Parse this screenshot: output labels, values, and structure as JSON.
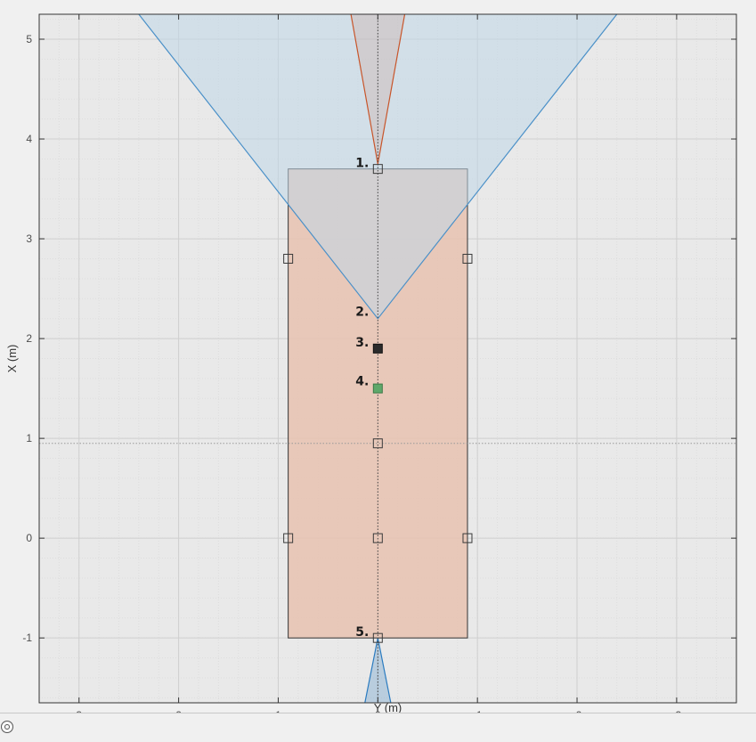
{
  "chart_data": {
    "type": "diagram",
    "x_axis": {
      "label": "Y (m)",
      "range": [
        3.4,
        -3.6
      ],
      "reversed": true,
      "ticks": [
        3,
        2,
        1,
        0,
        -1,
        -2,
        -3
      ]
    },
    "y_axis": {
      "label": "X (m)",
      "range": [
        -1.65,
        5.25
      ],
      "ticks": [
        -1,
        0,
        1,
        2,
        3,
        4,
        5
      ]
    },
    "grid": true,
    "minor_grid": true,
    "vehicle_body": {
      "y_left": 0.9,
      "y_right": -0.9,
      "x_front": 3.7,
      "x_rear": -1.0,
      "color": "#e8c2b0"
    },
    "front_wide_sensor": {
      "origin": [
        2.2,
        0.0
      ],
      "edge_points": [
        [
          5.25,
          2.4
        ],
        [
          5.25,
          -2.4
        ]
      ],
      "color": "#4a90c8",
      "fill": "#c0d7e8"
    },
    "front_narrow_sensor": {
      "origin": [
        3.75,
        0.0
      ],
      "edge_points": [
        [
          5.25,
          0.27
        ],
        [
          5.25,
          -0.27
        ]
      ],
      "color": "#c8552a"
    },
    "rear_sensor": {
      "origin": [
        -1.0,
        0.0
      ],
      "edge_points": [
        [
          -1.65,
          0.13
        ],
        [
          -1.65,
          -0.13
        ]
      ],
      "color": "#2a7bc0"
    },
    "reference_line_x": 0.95,
    "markers": [
      {
        "x": 3.7,
        "y": 0.0,
        "style": "open"
      },
      {
        "x": 2.8,
        "y": 0.9,
        "style": "open"
      },
      {
        "x": 2.8,
        "y": -0.9,
        "style": "open"
      },
      {
        "x": 1.9,
        "y": 0.0,
        "style": "filled-dark"
      },
      {
        "x": 1.5,
        "y": 0.0,
        "style": "filled-green"
      },
      {
        "x": 0.95,
        "y": 0.0,
        "style": "open"
      },
      {
        "x": 0.0,
        "y": 0.9,
        "style": "open"
      },
      {
        "x": 0.0,
        "y": 0.0,
        "style": "open"
      },
      {
        "x": 0.0,
        "y": -0.9,
        "style": "open"
      },
      {
        "x": -1.0,
        "y": 0.0,
        "style": "open"
      }
    ],
    "annotations": [
      {
        "text": "1.",
        "x": 3.72,
        "y": 0.0
      },
      {
        "text": "2.",
        "x": 2.23,
        "y": 0.0
      },
      {
        "text": "3.",
        "x": 1.92,
        "y": 0.0
      },
      {
        "text": "4.",
        "x": 1.53,
        "y": 0.0
      },
      {
        "text": "5.",
        "x": -0.98,
        "y": 0.0
      }
    ],
    "colors": {
      "plot_bg": "#e9e9e9",
      "grid_major": "#cfcfcf",
      "grid_minor": "#dddddd",
      "marker_dark": "#2b2b2b",
      "marker_green": "#5ea86a"
    }
  }
}
